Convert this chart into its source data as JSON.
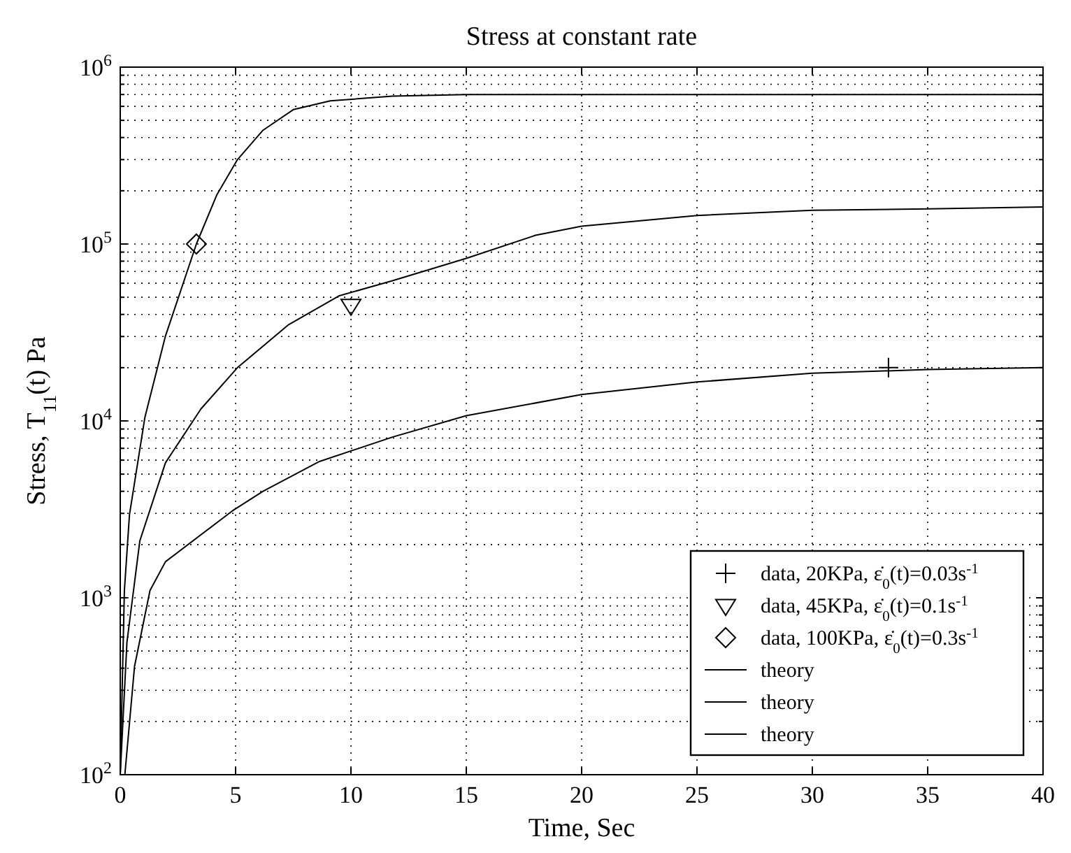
{
  "chart_data": {
    "type": "line",
    "title": "Stress at constant rate",
    "xlabel": "Time, Sec",
    "ylabel": "Stress, T$_{11}$(t) Pa",
    "log": "y",
    "grid": true,
    "legend": "bottom right",
    "xlim": [
      0,
      40
    ],
    "xticks": [
      0,
      5,
      10,
      15,
      20,
      25,
      30,
      35,
      40
    ],
    "ylim": [
      100,
      1000000
    ],
    "yticks": [
      {
        "value": 100,
        "label": "10$^{2}$"
      },
      {
        "value": 200,
        "label": null
      },
      {
        "value": 300,
        "label": null
      },
      {
        "value": 400,
        "label": null
      },
      {
        "value": 500,
        "label": null
      },
      {
        "value": 600,
        "label": null
      },
      {
        "value": 700,
        "label": null
      },
      {
        "value": 800,
        "label": null
      },
      {
        "value": 900,
        "label": null
      },
      {
        "value": 1000,
        "label": "10$^{3}$"
      },
      {
        "value": 2000,
        "label": null
      },
      {
        "value": 3000,
        "label": null
      },
      {
        "value": 4000,
        "label": null
      },
      {
        "value": 5000,
        "label": null
      },
      {
        "value": 6000,
        "label": null
      },
      {
        "value": 7000,
        "label": null
      },
      {
        "value": 8000,
        "label": null
      },
      {
        "value": 9000,
        "label": null
      },
      {
        "value": 10000,
        "label": "10$^{4}$"
      },
      {
        "value": 20000,
        "label": null
      },
      {
        "value": 30000,
        "label": null
      },
      {
        "value": 40000,
        "label": null
      },
      {
        "value": 50000,
        "label": null
      },
      {
        "value": 60000,
        "label": null
      },
      {
        "value": 70000,
        "label": null
      },
      {
        "value": 80000,
        "label": null
      },
      {
        "value": 90000,
        "label": null
      },
      {
        "value": 100000,
        "label": "10$^{5}$"
      },
      {
        "value": 200000,
        "label": null
      },
      {
        "value": 300000,
        "label": null
      },
      {
        "value": 400000,
        "label": null
      },
      {
        "value": 500000,
        "label": null
      },
      {
        "value": 600000,
        "label": null
      },
      {
        "value": 700000,
        "label": null
      },
      {
        "value": 800000,
        "label": null
      },
      {
        "value": 900000,
        "label": null
      },
      {
        "value": 1000000,
        "label": "10$^{6}$"
      }
    ],
    "series": [
      {
        "name": "data, 20KPa, ε̇$_{0}$(t)=0.03s$^{-1}$",
        "type": "scatter",
        "marker": "cross",
        "color": "#000000",
        "x": [
          33.3
        ],
        "values": [
          20000
        ]
      },
      {
        "name": "data, 45KPa, ε̇$_{0}$(t)=0.1s$^{-1}$",
        "type": "scatter",
        "marker": "triangle",
        "color": "#000000",
        "x": [
          10
        ],
        "values": [
          45000
        ]
      },
      {
        "name": "data, 100KPa, ε̇$_{0}$(t)=0.3s$^{-1}$",
        "type": "scatter",
        "marker": "diamond",
        "color": "#000000",
        "x": [
          3.3
        ],
        "values": [
          100000
        ]
      },
      {
        "name": "theory",
        "color": "#000000",
        "x": [
          0.2,
          0.62,
          1.29,
          1.96,
          4.86,
          6.19,
          8.64,
          11.8,
          15,
          20,
          25,
          30,
          35,
          40
        ],
        "values": [
          100,
          410,
          1100,
          1600,
          3100,
          4000,
          5900,
          8100,
          10700,
          14100,
          16600,
          18600,
          19500,
          20000
        ]
      },
      {
        "name": "theory",
        "color": "#000000",
        "x": [
          0,
          0.29,
          0.85,
          1.96,
          3.5,
          5.08,
          7.3,
          9.5,
          11.8,
          15,
          18,
          20,
          25,
          30,
          35,
          40
        ],
        "values": [
          100,
          560,
          2100,
          5800,
          11700,
          20000,
          35000,
          51000,
          62000,
          83000,
          112000,
          126000,
          145000,
          155000,
          158000,
          162000
        ]
      },
      {
        "name": "theory",
        "color": "#000000",
        "x": [
          0,
          0.18,
          0.4,
          1.07,
          1.96,
          3.3,
          4.19,
          5.08,
          6.19,
          7.5,
          9.1,
          11.8,
          15,
          20,
          30,
          40
        ],
        "values": [
          100,
          1100,
          2950,
          10500,
          30200,
          100000,
          190000,
          300000,
          440000,
          575000,
          645000,
          685000,
          700000,
          700000,
          700000,
          700000
        ]
      }
    ]
  }
}
